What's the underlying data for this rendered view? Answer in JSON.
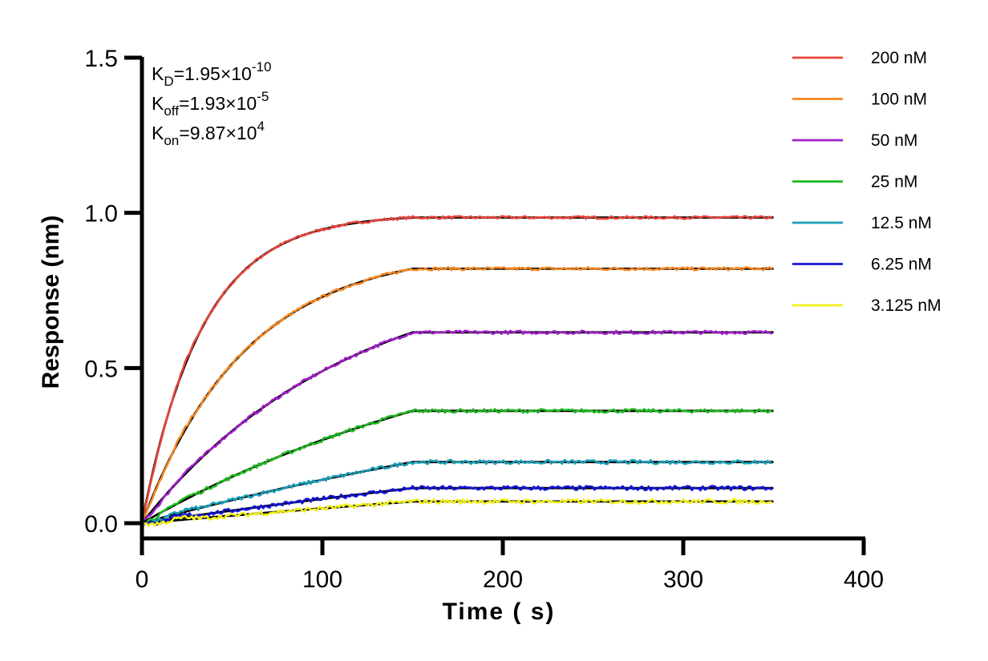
{
  "chart_data": {
    "type": "line",
    "title": "",
    "xlabel": "Time ( s)",
    "ylabel": "Response (nm)",
    "xlim": [
      0,
      400
    ],
    "ylim": [
      0,
      1.5
    ],
    "xticks": [
      "0",
      "100",
      "200",
      "300",
      "400"
    ],
    "yticks": [
      "0.0",
      "0.5",
      "1.0",
      "1.5"
    ],
    "grid": false,
    "legend_position": "top-right",
    "association_end_s": 150,
    "end_time_s": 350,
    "kinetics": [
      {
        "base": "K",
        "sub": "D",
        "value": "=1.95×10",
        "exp": "-10"
      },
      {
        "base": "K",
        "sub": "off",
        "value": "=1.93×10",
        "exp": "-5"
      },
      {
        "base": "K",
        "sub": "on",
        "value": "=9.87×10",
        "exp": "4"
      }
    ],
    "series": [
      {
        "name": "200 nM",
        "color": "#e8453c",
        "plateau": 0.985,
        "curvature": 4.5
      },
      {
        "name": "100 nM",
        "color": "#f5871f",
        "plateau": 0.82,
        "curvature": 2.6
      },
      {
        "name": "50 nM",
        "color": "#a020c8",
        "plateau": 0.615,
        "curvature": 1.3
      },
      {
        "name": "25 nM",
        "color": "#1fb81f",
        "plateau": 0.362,
        "curvature": 0.7
      },
      {
        "name": "12.5 nM",
        "color": "#1a9fb8",
        "plateau": 0.197,
        "curvature": 0.4
      },
      {
        "name": "6.25 nM",
        "color": "#1414d8",
        "plateau": 0.113,
        "curvature": 0.25
      },
      {
        "name": "3.125 nM",
        "color": "#f2ef1a",
        "plateau": 0.07,
        "curvature": 0.15
      }
    ],
    "fit_color": "#000000"
  }
}
